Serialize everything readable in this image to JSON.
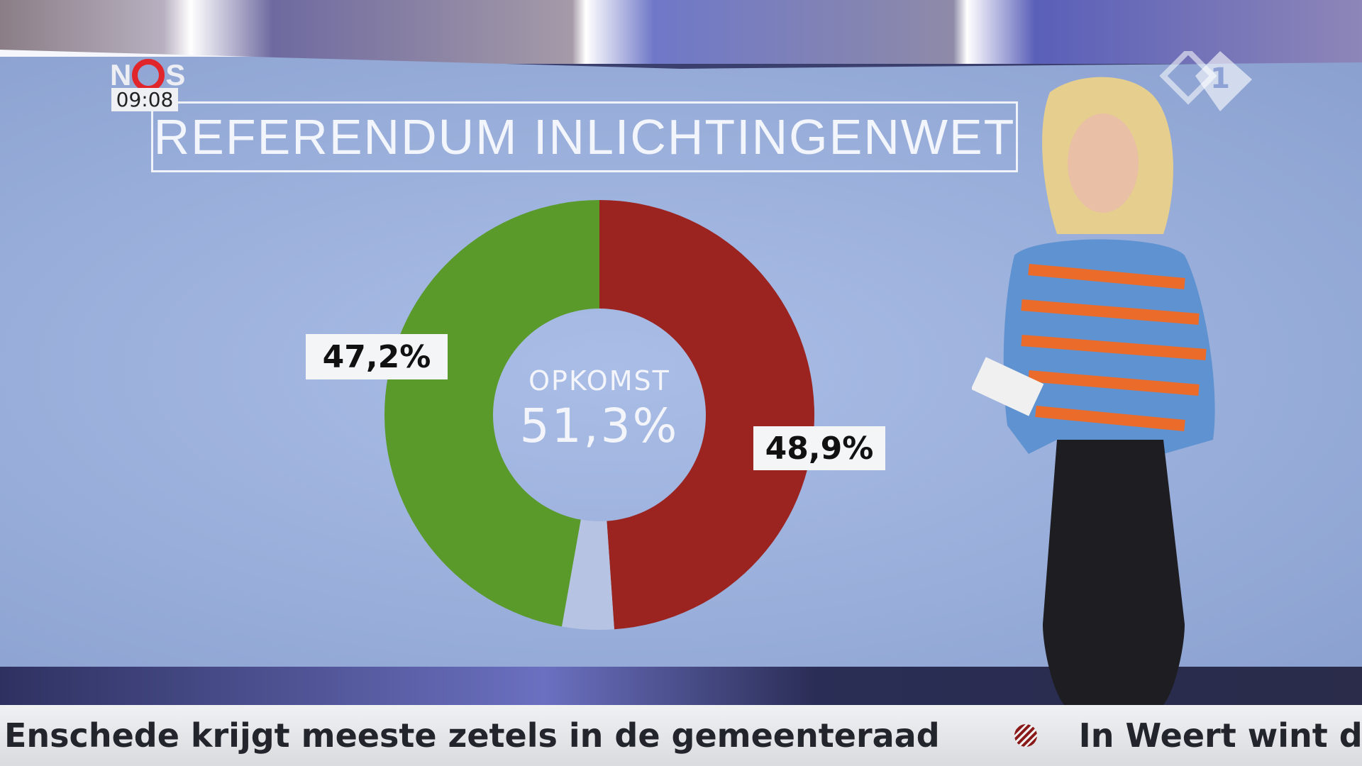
{
  "broadcast": {
    "logo": "NOS",
    "clock": "09:08",
    "channel_logo": "NPO 1"
  },
  "graphic": {
    "title": "REFERENDUM INLICHTINGENWET",
    "center_caption": "OPKOMST",
    "center_value": "51,3%"
  },
  "chart_data": {
    "type": "pie",
    "variant": "donut",
    "title": "REFERENDUM INLICHTINGENWET",
    "center_label": "OPKOMST",
    "center_value": "51,3%",
    "slices": [
      {
        "label": "48,9%",
        "value": 48.9,
        "color": "#9b2420"
      },
      {
        "label": "",
        "value": 3.9,
        "color": "#b6c3e2"
      },
      {
        "label": "47,2%",
        "value": 47.2,
        "color": "#5a9a2a"
      }
    ],
    "start": "top",
    "direction": "clockwise"
  },
  "ticker": {
    "items": [
      "Enschede krijgt meeste zetels in de gemeenteraad",
      "In Weert wint de loka"
    ],
    "separator_icon": "party-logo-icon"
  }
}
